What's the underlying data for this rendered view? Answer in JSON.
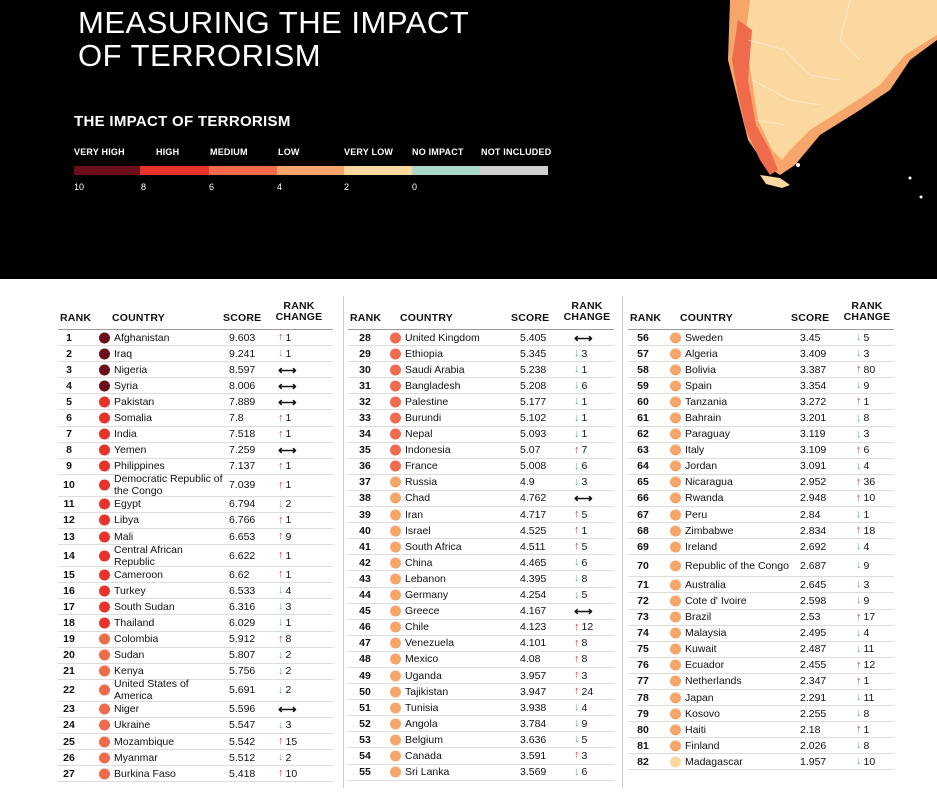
{
  "header": {
    "title": "MEASURING THE IMPACT\nOF TERRORISM",
    "legend_title": "THE IMPACT OF TERRORISM",
    "legend": [
      {
        "label": "VERY HIGH",
        "color": "#6b0f1a"
      },
      {
        "label": "HIGH",
        "color": "#e8332a"
      },
      {
        "label": "MEDIUM",
        "color": "#ef6b4b"
      },
      {
        "label": "LOW",
        "color": "#f6a66b"
      },
      {
        "label": "VERY LOW",
        "color": "#fbd8a0"
      },
      {
        "label": "NO IMPACT",
        "color": "#a7d8c9"
      },
      {
        "label": "NOT INCLUDED",
        "color": "#cfcfcf"
      }
    ],
    "ticks": [
      "10",
      "8",
      "6",
      "4",
      "2",
      "0"
    ]
  },
  "table": {
    "headers": {
      "rank": "RANK",
      "country": "COUNTRY",
      "score": "SCORE",
      "change": "RANK\nCHANGE"
    },
    "columns": [
      [
        {
          "rank": "1",
          "country": "Afghanistan",
          "score": "9.603",
          "dir": "up",
          "change": "1",
          "level": "very-high"
        },
        {
          "rank": "2",
          "country": "Iraq",
          "score": "9.241",
          "dir": "down",
          "change": "1",
          "level": "very-high"
        },
        {
          "rank": "3",
          "country": "Nigeria",
          "score": "8.597",
          "dir": "same",
          "change": "",
          "level": "very-high"
        },
        {
          "rank": "4",
          "country": "Syria",
          "score": "8.006",
          "dir": "same",
          "change": "",
          "level": "very-high"
        },
        {
          "rank": "5",
          "country": "Pakistan",
          "score": "7.889",
          "dir": "same",
          "change": "",
          "level": "high"
        },
        {
          "rank": "6",
          "country": "Somalia",
          "score": "7.8",
          "dir": "up",
          "change": "1",
          "level": "high"
        },
        {
          "rank": "7",
          "country": "India",
          "score": "7.518",
          "dir": "up",
          "change": "1",
          "level": "high"
        },
        {
          "rank": "8",
          "country": "Yemen",
          "score": "7.259",
          "dir": "same",
          "change": "",
          "level": "high"
        },
        {
          "rank": "9",
          "country": "Philippines",
          "score": "7.137",
          "dir": "up",
          "change": "1",
          "level": "high"
        },
        {
          "rank": "10",
          "country": "Democratic Republic of the Congo",
          "score": "7.039",
          "dir": "up",
          "change": "1",
          "level": "high"
        },
        {
          "rank": "11",
          "country": "Egypt",
          "score": "6.794",
          "dir": "down",
          "change": "2",
          "level": "high"
        },
        {
          "rank": "12",
          "country": "Libya",
          "score": "6.766",
          "dir": "up",
          "change": "1",
          "level": "high"
        },
        {
          "rank": "13",
          "country": "Mali",
          "score": "6.653",
          "dir": "up",
          "change": "9",
          "level": "high"
        },
        {
          "rank": "14",
          "country": "Central African Republic",
          "score": "6.622",
          "dir": "up",
          "change": "1",
          "level": "high"
        },
        {
          "rank": "15",
          "country": "Cameroon",
          "score": "6.62",
          "dir": "up",
          "change": "1",
          "level": "high"
        },
        {
          "rank": "16",
          "country": "Turkey",
          "score": "6.533",
          "dir": "down",
          "change": "4",
          "level": "high"
        },
        {
          "rank": "17",
          "country": "South Sudan",
          "score": "6.316",
          "dir": "down",
          "change": "3",
          "level": "high"
        },
        {
          "rank": "18",
          "country": "Thailand",
          "score": "6.029",
          "dir": "down",
          "change": "1",
          "level": "high"
        },
        {
          "rank": "19",
          "country": "Colombia",
          "score": "5.912",
          "dir": "up",
          "change": "8",
          "level": "medium"
        },
        {
          "rank": "20",
          "country": "Sudan",
          "score": "5.807",
          "dir": "down",
          "change": "2",
          "level": "medium"
        },
        {
          "rank": "21",
          "country": "Kenya",
          "score": "5.756",
          "dir": "down",
          "change": "2",
          "level": "medium"
        },
        {
          "rank": "22",
          "country": "United States of America",
          "score": "5.691",
          "dir": "down",
          "change": "2",
          "level": "medium"
        },
        {
          "rank": "23",
          "country": "Niger",
          "score": "5.596",
          "dir": "same",
          "change": "",
          "level": "medium"
        },
        {
          "rank": "24",
          "country": "Ukraine",
          "score": "5.547",
          "dir": "down",
          "change": "3",
          "level": "medium"
        },
        {
          "rank": "25",
          "country": "Mozambique",
          "score": "5.542",
          "dir": "up",
          "change": "15",
          "level": "medium"
        },
        {
          "rank": "26",
          "country": "Myanmar",
          "score": "5.512",
          "dir": "down",
          "change": "2",
          "level": "medium"
        },
        {
          "rank": "27",
          "country": "Burkina Faso",
          "score": "5.418",
          "dir": "up",
          "change": "10",
          "level": "medium"
        }
      ],
      [
        {
          "rank": "28",
          "country": "United Kingdom",
          "score": "5.405",
          "dir": "same",
          "change": "",
          "level": "medium"
        },
        {
          "rank": "29",
          "country": "Ethiopia",
          "score": "5.345",
          "dir": "down",
          "change": "3",
          "level": "medium"
        },
        {
          "rank": "30",
          "country": "Saudi Arabia",
          "score": "5.238",
          "dir": "down",
          "change": "1",
          "level": "medium"
        },
        {
          "rank": "31",
          "country": "Bangladesh",
          "score": "5.208",
          "dir": "down",
          "change": "6",
          "level": "medium"
        },
        {
          "rank": "32",
          "country": "Palestine",
          "score": "5.177",
          "dir": "down",
          "change": "1",
          "level": "medium"
        },
        {
          "rank": "33",
          "country": "Burundi",
          "score": "5.102",
          "dir": "down",
          "change": "1",
          "level": "medium"
        },
        {
          "rank": "34",
          "country": "Nepal",
          "score": "5.093",
          "dir": "down",
          "change": "1",
          "level": "medium"
        },
        {
          "rank": "35",
          "country": "Indonesia",
          "score": "5.07",
          "dir": "up",
          "change": "7",
          "level": "medium"
        },
        {
          "rank": "36",
          "country": "France",
          "score": "5.008",
          "dir": "down",
          "change": "6",
          "level": "medium"
        },
        {
          "rank": "37",
          "country": "Russia",
          "score": "4.9",
          "dir": "down",
          "change": "3",
          "level": "low"
        },
        {
          "rank": "38",
          "country": "Chad",
          "score": "4.762",
          "dir": "same",
          "change": "",
          "level": "low"
        },
        {
          "rank": "39",
          "country": "Iran",
          "score": "4.717",
          "dir": "up",
          "change": "5",
          "level": "low"
        },
        {
          "rank": "40",
          "country": "Israel",
          "score": "4.525",
          "dir": "up",
          "change": "1",
          "level": "low"
        },
        {
          "rank": "41",
          "country": "South Africa",
          "score": "4.511",
          "dir": "up",
          "change": "5",
          "level": "low"
        },
        {
          "rank": "42",
          "country": "China",
          "score": "4.465",
          "dir": "down",
          "change": "6",
          "level": "low"
        },
        {
          "rank": "43",
          "country": "Lebanon",
          "score": "4.395",
          "dir": "down",
          "change": "8",
          "level": "low"
        },
        {
          "rank": "44",
          "country": "Germany",
          "score": "4.254",
          "dir": "down",
          "change": "5",
          "level": "low"
        },
        {
          "rank": "45",
          "country": "Greece",
          "score": "4.167",
          "dir": "same",
          "change": "",
          "level": "low"
        },
        {
          "rank": "46",
          "country": "Chile",
          "score": "4.123",
          "dir": "up",
          "change": "12",
          "level": "low"
        },
        {
          "rank": "47",
          "country": "Venezuela",
          "score": "4.101",
          "dir": "up",
          "change": "8",
          "level": "low"
        },
        {
          "rank": "48",
          "country": "Mexico",
          "score": "4.08",
          "dir": "up",
          "change": "8",
          "level": "low"
        },
        {
          "rank": "49",
          "country": "Uganda",
          "score": "3.957",
          "dir": "up",
          "change": "3",
          "level": "low"
        },
        {
          "rank": "50",
          "country": "Tajikistan",
          "score": "3.947",
          "dir": "up",
          "change": "24",
          "level": "low"
        },
        {
          "rank": "51",
          "country": "Tunisia",
          "score": "3.938",
          "dir": "down",
          "change": "4",
          "level": "low"
        },
        {
          "rank": "52",
          "country": "Angola",
          "score": "3.784",
          "dir": "down",
          "change": "9",
          "level": "low"
        },
        {
          "rank": "53",
          "country": "Belgium",
          "score": "3.636",
          "dir": "down",
          "change": "5",
          "level": "low"
        },
        {
          "rank": "54",
          "country": "Canada",
          "score": "3.591",
          "dir": "up",
          "change": "3",
          "level": "low"
        },
        {
          "rank": "55",
          "country": "Sri Lanka",
          "score": "3.569",
          "dir": "down",
          "change": "6",
          "level": "low"
        }
      ],
      [
        {
          "rank": "56",
          "country": "Sweden",
          "score": "3.45",
          "dir": "down",
          "change": "5",
          "level": "low"
        },
        {
          "rank": "57",
          "country": "Algeria",
          "score": "3.409",
          "dir": "down",
          "change": "3",
          "level": "low"
        },
        {
          "rank": "58",
          "country": "Bolivia",
          "score": "3.387",
          "dir": "up",
          "change": "80",
          "level": "low"
        },
        {
          "rank": "59",
          "country": "Spain",
          "score": "3.354",
          "dir": "down",
          "change": "9",
          "level": "low"
        },
        {
          "rank": "60",
          "country": "Tanzania",
          "score": "3.272",
          "dir": "up",
          "change": "1",
          "level": "low"
        },
        {
          "rank": "61",
          "country": "Bahrain",
          "score": "3.201",
          "dir": "down",
          "change": "8",
          "level": "low"
        },
        {
          "rank": "62",
          "country": "Paraguay",
          "score": "3.119",
          "dir": "down",
          "change": "3",
          "level": "low"
        },
        {
          "rank": "63",
          "country": "Italy",
          "score": "3.109",
          "dir": "up",
          "change": "6",
          "level": "low"
        },
        {
          "rank": "64",
          "country": "Jordan",
          "score": "3.091",
          "dir": "down",
          "change": "4",
          "level": "low"
        },
        {
          "rank": "65",
          "country": "Nicaragua",
          "score": "2.952",
          "dir": "up",
          "change": "36",
          "level": "low"
        },
        {
          "rank": "66",
          "country": "Rwanda",
          "score": "2.948",
          "dir": "up",
          "change": "10",
          "level": "low"
        },
        {
          "rank": "67",
          "country": "Peru",
          "score": "2.84",
          "dir": "down",
          "change": "1",
          "level": "low"
        },
        {
          "rank": "68",
          "country": "Zimbabwe",
          "score": "2.834",
          "dir": "up",
          "change": "18",
          "level": "low"
        },
        {
          "rank": "69",
          "country": "Ireland",
          "score": "2.692",
          "dir": "down",
          "change": "4",
          "level": "low"
        },
        {
          "rank": "70",
          "country": "Republic of the Congo",
          "score": "2.687",
          "dir": "down",
          "change": "9",
          "level": "low"
        },
        {
          "rank": "71",
          "country": "Australia",
          "score": "2.645",
          "dir": "down",
          "change": "3",
          "level": "low"
        },
        {
          "rank": "72",
          "country": "Cote d' Ivoire",
          "score": "2.598",
          "dir": "down",
          "change": "9",
          "level": "low"
        },
        {
          "rank": "73",
          "country": "Brazil",
          "score": "2.53",
          "dir": "up",
          "change": "17",
          "level": "low"
        },
        {
          "rank": "74",
          "country": "Malaysia",
          "score": "2.495",
          "dir": "down",
          "change": "4",
          "level": "low"
        },
        {
          "rank": "75",
          "country": "Kuwait",
          "score": "2.487",
          "dir": "down",
          "change": "11",
          "level": "low"
        },
        {
          "rank": "76",
          "country": "Ecuador",
          "score": "2.455",
          "dir": "up",
          "change": "12",
          "level": "low"
        },
        {
          "rank": "77",
          "country": "Netherlands",
          "score": "2.347",
          "dir": "up",
          "change": "1",
          "level": "low"
        },
        {
          "rank": "78",
          "country": "Japan",
          "score": "2.291",
          "dir": "down",
          "change": "11",
          "level": "low"
        },
        {
          "rank": "79",
          "country": "Kosovo",
          "score": "2.255",
          "dir": "down",
          "change": "8",
          "level": "low"
        },
        {
          "rank": "80",
          "country": "Haiti",
          "score": "2.18",
          "dir": "up",
          "change": "1",
          "level": "low"
        },
        {
          "rank": "81",
          "country": "Finland",
          "score": "2.026",
          "dir": "down",
          "change": "8",
          "level": "low"
        },
        {
          "rank": "82",
          "country": "Madagascar",
          "score": "1.957",
          "dir": "down",
          "change": "10",
          "level": "very-low"
        }
      ]
    ]
  },
  "colors": {
    "very-high": "#6b0f1a",
    "high": "#e8332a",
    "medium": "#ef6b4b",
    "low": "#f6a66b",
    "very-low": "#fbd8a0",
    "up": "#e8332a",
    "down": "#4fb3a0",
    "same": "#111111"
  }
}
